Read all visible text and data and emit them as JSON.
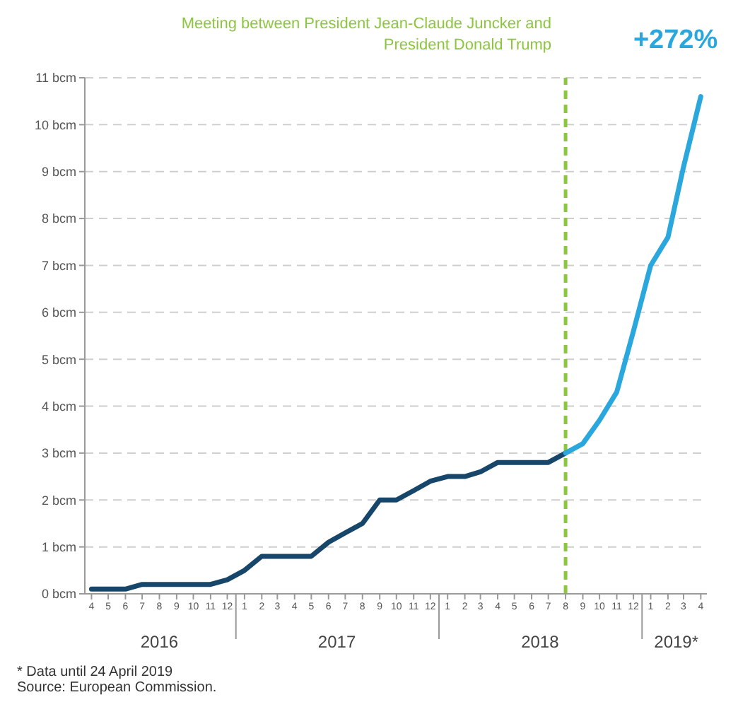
{
  "chart_data": {
    "type": "line",
    "x": [
      "2016-04",
      "2016-05",
      "2016-06",
      "2016-07",
      "2016-08",
      "2016-09",
      "2016-10",
      "2016-11",
      "2016-12",
      "2017-01",
      "2017-02",
      "2017-03",
      "2017-04",
      "2017-05",
      "2017-06",
      "2017-07",
      "2017-08",
      "2017-09",
      "2017-10",
      "2017-11",
      "2017-12",
      "2018-01",
      "2018-02",
      "2018-03",
      "2018-04",
      "2018-05",
      "2018-06",
      "2018-07",
      "2018-08",
      "2018-09",
      "2018-10",
      "2018-11",
      "2018-12",
      "2019-01",
      "2019-02",
      "2019-03",
      "2019-04"
    ],
    "series": [
      {
        "color": "#17466b",
        "values": [
          0.1,
          0.1,
          0.1,
          0.2,
          0.2,
          0.2,
          0.2,
          0.2,
          0.3,
          0.5,
          0.8,
          0.8,
          0.8,
          0.8,
          1.1,
          1.3,
          1.5,
          2.0,
          2.0,
          2.2,
          2.4,
          2.5,
          2.5,
          2.6,
          2.8,
          2.8,
          2.8,
          2.8,
          3.0,
          null,
          null,
          null,
          null,
          null,
          null,
          null,
          null
        ]
      },
      {
        "color": "#2aa7dc",
        "values": [
          null,
          null,
          null,
          null,
          null,
          null,
          null,
          null,
          null,
          null,
          null,
          null,
          null,
          null,
          null,
          null,
          null,
          null,
          null,
          null,
          null,
          null,
          null,
          null,
          null,
          null,
          null,
          null,
          3.0,
          3.2,
          3.7,
          4.3,
          5.6,
          7.0,
          7.6,
          9.1,
          10.6
        ]
      }
    ],
    "xlim": [
      "2016-03-20",
      "2019-04-12"
    ],
    "xticks": [
      {
        "value": "2016-04",
        "label": "4"
      },
      {
        "value": "2016-05",
        "label": "5"
      },
      {
        "value": "2016-06",
        "label": "6"
      },
      {
        "value": "2016-07",
        "label": "7"
      },
      {
        "value": "2016-08",
        "label": "8"
      },
      {
        "value": "2016-09",
        "label": "9"
      },
      {
        "value": "2016-10",
        "label": "10"
      },
      {
        "value": "2016-11",
        "label": "11"
      },
      {
        "value": "2016-12",
        "label": "12"
      },
      {
        "value": "2017-01",
        "label": "1"
      },
      {
        "value": "2017-02",
        "label": "2"
      },
      {
        "value": "2017-03",
        "label": "3"
      },
      {
        "value": "2017-04",
        "label": "4"
      },
      {
        "value": "2017-05",
        "label": "5"
      },
      {
        "value": "2017-06",
        "label": "6"
      },
      {
        "value": "2017-07",
        "label": "7"
      },
      {
        "value": "2017-08",
        "label": "8"
      },
      {
        "value": "2017-09",
        "label": "9"
      },
      {
        "value": "2017-10",
        "label": "10"
      },
      {
        "value": "2017-11",
        "label": "11"
      },
      {
        "value": "2017-12",
        "label": "12"
      },
      {
        "value": "2018-01",
        "label": "1"
      },
      {
        "value": "2018-02",
        "label": "2"
      },
      {
        "value": "2018-03",
        "label": "3"
      },
      {
        "value": "2018-04",
        "label": "4"
      },
      {
        "value": "2018-05",
        "label": "5"
      },
      {
        "value": "2018-06",
        "label": "6"
      },
      {
        "value": "2018-07",
        "label": "7"
      },
      {
        "value": "2018-08",
        "label": "8"
      },
      {
        "value": "2018-09",
        "label": "9"
      },
      {
        "value": "2018-10",
        "label": "10"
      },
      {
        "value": "2018-11",
        "label": "11"
      },
      {
        "value": "2018-12",
        "label": "12"
      },
      {
        "value": "2019-01",
        "label": "1"
      },
      {
        "value": "2019-02",
        "label": "2"
      },
      {
        "value": "2019-03",
        "label": "3"
      },
      {
        "value": "2019-04",
        "label": "4"
      }
    ],
    "x2lim": [
      "2016-03-20",
      "2019-04-12"
    ],
    "x2ticks": [
      {
        "value": "2016-08-01",
        "label": "2016"
      },
      {
        "value": "2017-06-16",
        "label": "2017"
      },
      {
        "value": "2018-06-16",
        "label": "2018"
      },
      {
        "value": "2019-02-16",
        "label": "2019*"
      }
    ],
    "ylim": [
      0,
      11
    ],
    "yticks": [
      {
        "value": 0,
        "label": "0 bcm"
      },
      {
        "value": 1,
        "label": "1 bcm"
      },
      {
        "value": 2,
        "label": "2 bcm"
      },
      {
        "value": 3,
        "label": "3 bcm"
      },
      {
        "value": 4,
        "label": "4 bcm"
      },
      {
        "value": 5,
        "label": "5 bcm"
      },
      {
        "value": 6,
        "label": "6 bcm"
      },
      {
        "value": 7,
        "label": "7 bcm"
      },
      {
        "value": 8,
        "label": "8 bcm"
      },
      {
        "value": 9,
        "label": "9 bcm"
      },
      {
        "value": 10,
        "label": "10 bcm"
      },
      {
        "value": 11,
        "label": "11 bcm"
      }
    ],
    "grid": "y",
    "ref_lines": [
      {
        "axis": "x",
        "value": "2018-08",
        "label": "Meeting between President Jean-Claude Juncker and President Donald Trump",
        "color": "#8cc63f",
        "line_style": "dashed"
      }
    ],
    "annotations": [
      {
        "text": "+272%",
        "x": "2019-04",
        "y": 10.6
      },
      "* Data until 24 April 2019",
      "Source: European Commission."
    ]
  }
}
